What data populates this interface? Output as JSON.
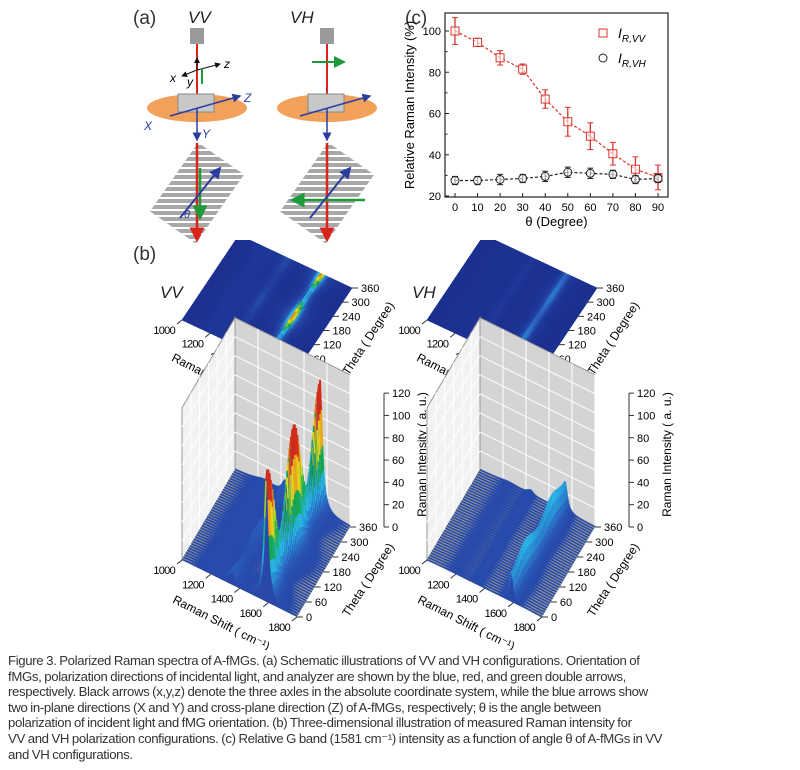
{
  "panels": {
    "a": {
      "label": "(a)",
      "configs": [
        "VV",
        "VH"
      ],
      "axes_lower": [
        "x",
        "y",
        "z"
      ],
      "axes_upper": [
        "X",
        "Y",
        "Z"
      ],
      "angle": "θ"
    },
    "b": {
      "label": "(b)",
      "configs": [
        "VV",
        "VH"
      ],
      "heatmap_axes": {
        "xlabel": "Raman Shift ( cm⁻¹)",
        "ylabel": "Theta ( Degree)",
        "xticks": [
          "1000",
          "1200",
          "1400",
          "1600",
          "1800"
        ],
        "yticks": [
          "0",
          "60",
          "120",
          "180",
          "240",
          "300",
          "360"
        ]
      },
      "surface_axes": {
        "xlabel": "Raman Shift ( cm⁻¹)",
        "ylabel": "Theta ( Degree)",
        "zlabel": "Raman Intensity ( a. u.)",
        "xticks": [
          "1000",
          "1200",
          "1400",
          "1600",
          "1800"
        ],
        "yticks": [
          "0",
          "60",
          "120",
          "180",
          "240",
          "300",
          "360"
        ],
        "zticks": [
          "0",
          "20",
          "40",
          "60",
          "80",
          "100",
          "120"
        ]
      },
      "colormap": [
        "#1c2f8f",
        "#2b5fc0",
        "#29b6e6",
        "#16a84a",
        "#f2e21a",
        "#d42a1a"
      ]
    },
    "c": {
      "label": "(c)"
    }
  },
  "chart_data": {
    "type": "scatter",
    "xlabel": "θ (Degree)",
    "ylabel": "Relative Raman Intensity (%)",
    "xlim": [
      -5,
      95
    ],
    "ylim": [
      20,
      108
    ],
    "xticks": [
      0,
      10,
      20,
      30,
      40,
      50,
      60,
      70,
      80,
      90
    ],
    "yticks": [
      20,
      40,
      60,
      80,
      100
    ],
    "legend_position": "top-right",
    "series": [
      {
        "name_main": "I",
        "name_sub": "R,VV",
        "marker": "square",
        "color": "#d9342b",
        "line": "dashed",
        "x": [
          0,
          10,
          20,
          30,
          40,
          50,
          60,
          70,
          80,
          90
        ],
        "y": [
          100,
          94.5,
          87,
          81.5,
          67,
          56,
          49,
          40.5,
          33,
          29
        ],
        "err": [
          6.5,
          2,
          3.5,
          2.5,
          4.5,
          7,
          6.5,
          5.5,
          6,
          6
        ]
      },
      {
        "name_main": "I",
        "name_sub": "R,VH",
        "marker": "circle",
        "color": "#222222",
        "line": "dashed",
        "x": [
          0,
          10,
          20,
          30,
          40,
          50,
          60,
          70,
          80,
          90
        ],
        "y": [
          27.5,
          27.5,
          28,
          28.5,
          29.5,
          31.5,
          31,
          30.5,
          28,
          28.5
        ],
        "err": [
          2,
          2,
          2.5,
          2,
          2.5,
          2.5,
          2.5,
          2,
          2,
          2
        ]
      }
    ]
  },
  "caption": {
    "lines": [
      "Figure 3.  Polarized Raman spectra of A-fMGs. (a) Schematic illustrations of VV and VH configurations. Orientation of",
      "fMGs, polarization directions of incidental light, and analyzer are shown by the blue, red, and green double arrows,",
      "respectively. Black arrows (x,y,z) denote the three axles in the absolute coordinate system, while the blue arrows show",
      "two in-plane directions (X and Y) and cross-plane direction (Z) of A-fMGs, respectively; θ is the angle between",
      "polarization of incident light and fMG orientation. (b) Three-dimensional illustration of measured Raman intensity for",
      "VV and VH polarization configurations. (c) Relative G band (1581 cm⁻¹) intensity as a function of angle θ of A-fMGs in VV",
      "and VH configurations."
    ]
  }
}
